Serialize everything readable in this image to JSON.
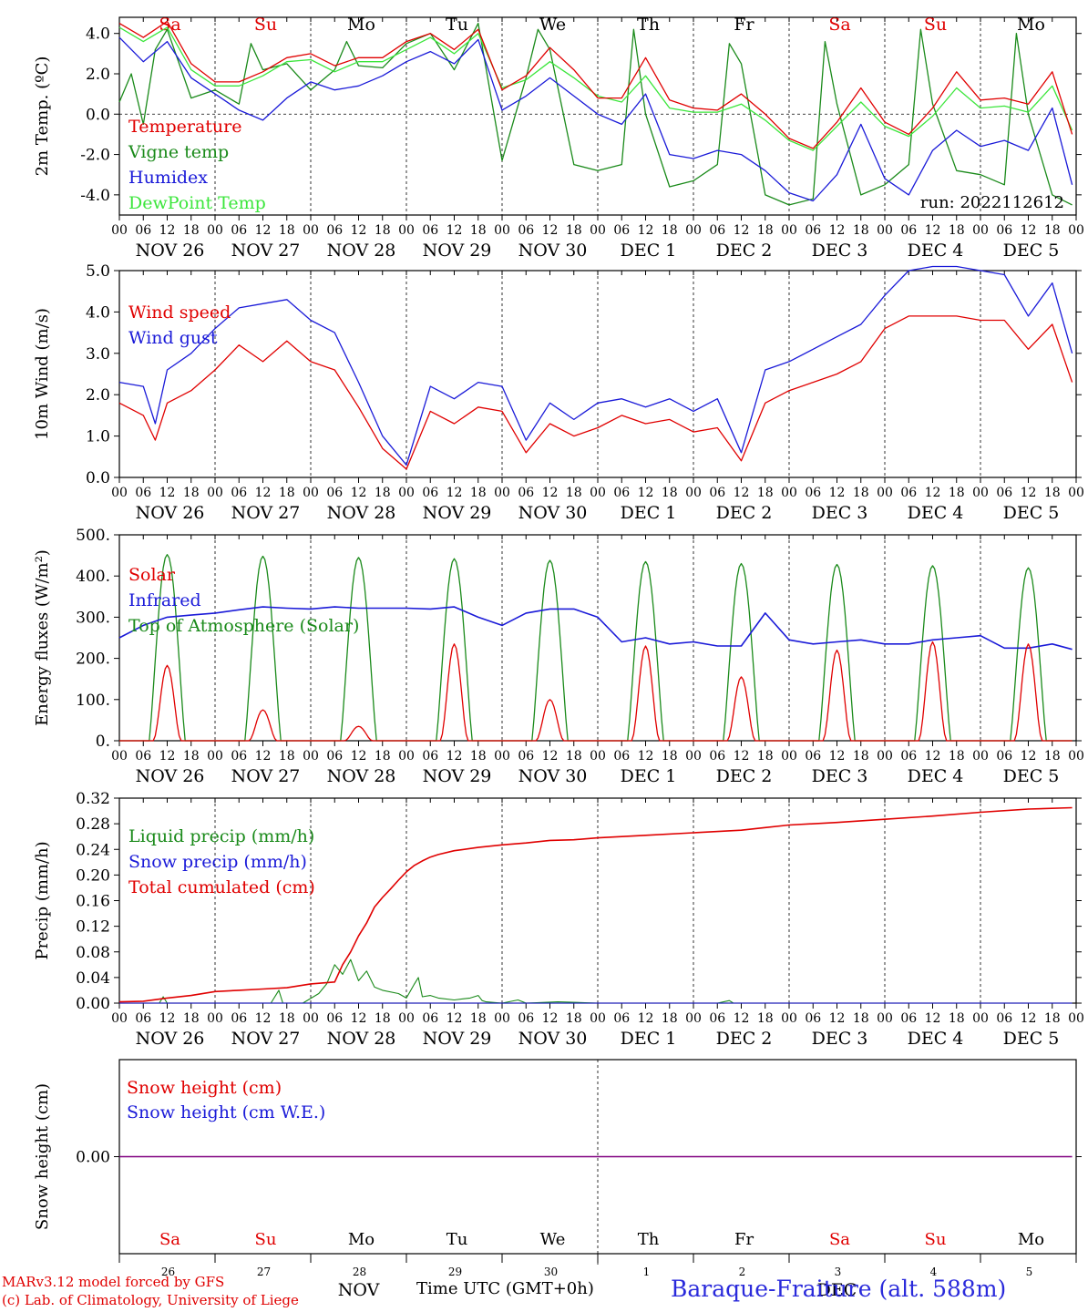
{
  "colors": {
    "red": "#e00000",
    "green": "#1a8a1a",
    "blue": "#1a1ad8",
    "lime": "#3ce63c",
    "purple": "#800080",
    "grid": "#000000"
  },
  "calendar": {
    "day_labels": [
      "NOV 26",
      "NOV 27",
      "NOV 28",
      "NOV 29",
      "NOV 30",
      "DEC  1",
      "DEC  2",
      "DEC  3",
      "DEC  4",
      "DEC  5"
    ],
    "weekdays": [
      "Sa",
      "Su",
      "Mo",
      "Tu",
      "We",
      "Th",
      "Fr",
      "Sa",
      "Su",
      "Mo"
    ],
    "weekday_colors": [
      "red",
      "red",
      "black",
      "black",
      "black",
      "black",
      "black",
      "red",
      "red",
      "black"
    ],
    "hour_ticks": [
      "00",
      "06",
      "12",
      "18"
    ],
    "bottom_day_numbers": [
      "26",
      "27",
      "28",
      "29",
      "30",
      "1",
      "2",
      "3",
      "4",
      "5"
    ],
    "bottom_month_labels": [
      "NOV",
      "DEC"
    ]
  },
  "footer": {
    "model_line": "MARv3.12 model forced by GFS",
    "copyright_line": "(c) Lab. of Climatology, University of Liege",
    "xaxis_title": "Time UTC (GMT+0h)",
    "station": "Baraque-Fraiture (alt. 588m)"
  },
  "chart_data": [
    {
      "type": "line",
      "ylabel": "2m Temp. (ºC)",
      "ylim": [
        -5,
        4.8
      ],
      "yticks": [
        "4.0",
        "2.0",
        "0.0",
        "-2.0",
        "-4.0"
      ],
      "ytick_values": [
        4,
        2,
        0,
        -2,
        -4
      ],
      "zero_line": 0,
      "annotation": "run: 2022112612",
      "x_unit": "hours since NOV 26 00 UTC",
      "series": [
        {
          "name": "Temperature",
          "color": "red",
          "x": [
            0,
            6,
            12,
            18,
            24,
            30,
            36,
            42,
            48,
            54,
            60,
            66,
            72,
            78,
            84,
            90,
            96,
            102,
            108,
            114,
            120,
            126,
            132,
            138,
            144,
            150,
            156,
            162,
            168,
            174,
            180,
            186,
            192,
            198,
            204,
            210,
            216,
            222,
            228,
            234,
            239
          ],
          "values": [
            4.5,
            3.8,
            4.6,
            2.5,
            1.6,
            1.6,
            2.1,
            2.8,
            3.0,
            2.4,
            2.8,
            2.8,
            3.6,
            4.0,
            3.2,
            4.2,
            1.2,
            1.9,
            3.3,
            2.2,
            0.8,
            0.8,
            2.8,
            0.7,
            0.3,
            0.2,
            1.0,
            0.0,
            -1.2,
            -1.7,
            -0.4,
            1.3,
            -0.4,
            -1.0,
            0.3,
            2.1,
            0.7,
            0.8,
            0.5,
            2.1,
            -1.0
          ]
        },
        {
          "name": "Vigne temp",
          "color": "green",
          "x": [
            0,
            3,
            6,
            9,
            12,
            18,
            24,
            30,
            33,
            36,
            42,
            48,
            54,
            57,
            60,
            66,
            72,
            78,
            84,
            90,
            96,
            102,
            105,
            108,
            114,
            120,
            126,
            129,
            132,
            138,
            144,
            150,
            153,
            156,
            162,
            168,
            174,
            177,
            180,
            186,
            192,
            198,
            201,
            204,
            210,
            216,
            222,
            225,
            228,
            234,
            239
          ],
          "values": [
            0.6,
            2.0,
            -0.5,
            3.2,
            4.2,
            0.8,
            1.2,
            0.5,
            3.5,
            2.2,
            2.5,
            1.2,
            2.2,
            3.6,
            2.4,
            2.3,
            3.5,
            4.0,
            2.2,
            4.5,
            -2.3,
            1.8,
            4.2,
            3.2,
            -2.5,
            -2.8,
            -2.5,
            4.2,
            0.0,
            -3.6,
            -3.3,
            -2.5,
            3.5,
            2.5,
            -4.0,
            -4.5,
            -4.2,
            3.6,
            0.5,
            -4.0,
            -3.5,
            -2.5,
            4.2,
            0.5,
            -2.8,
            -3.0,
            -3.5,
            4.0,
            0.0,
            -4.0,
            -4.5
          ]
        },
        {
          "name": "Humidex",
          "color": "blue",
          "x": [
            0,
            6,
            12,
            18,
            24,
            30,
            36,
            42,
            48,
            54,
            60,
            66,
            72,
            78,
            84,
            90,
            96,
            102,
            108,
            114,
            120,
            126,
            132,
            138,
            144,
            150,
            156,
            162,
            168,
            174,
            180,
            186,
            192,
            198,
            204,
            210,
            216,
            222,
            228,
            234,
            239
          ],
          "values": [
            3.8,
            2.6,
            3.6,
            1.8,
            1.0,
            0.2,
            -0.3,
            0.8,
            1.6,
            1.2,
            1.4,
            1.9,
            2.6,
            3.1,
            2.5,
            3.7,
            0.2,
            0.9,
            1.8,
            0.9,
            0.0,
            -0.5,
            1.0,
            -2.0,
            -2.2,
            -1.8,
            -2.0,
            -2.8,
            -3.9,
            -4.3,
            -3.0,
            -0.5,
            -3.2,
            -4.0,
            -1.8,
            -0.8,
            -1.6,
            -1.3,
            -1.8,
            0.3,
            -3.5
          ]
        },
        {
          "name": "DewPoint Temp",
          "color": "lime",
          "x": [
            0,
            6,
            12,
            18,
            24,
            30,
            36,
            42,
            48,
            54,
            60,
            66,
            72,
            78,
            84,
            90,
            96,
            102,
            108,
            114,
            120,
            126,
            132,
            138,
            144,
            150,
            156,
            162,
            168,
            174,
            180,
            186,
            192,
            198,
            204,
            210,
            216,
            222,
            228,
            234,
            239
          ],
          "values": [
            4.3,
            3.6,
            4.3,
            2.2,
            1.4,
            1.4,
            1.9,
            2.6,
            2.7,
            2.1,
            2.6,
            2.6,
            3.2,
            3.8,
            3.0,
            4.0,
            1.3,
            1.7,
            2.6,
            1.8,
            0.9,
            0.6,
            1.9,
            0.3,
            0.1,
            0.1,
            0.5,
            -0.3,
            -1.3,
            -1.8,
            -0.6,
            0.6,
            -0.6,
            -1.1,
            -0.1,
            1.3,
            0.3,
            0.4,
            0.1,
            1.4,
            -0.8
          ]
        }
      ]
    },
    {
      "type": "line",
      "ylabel": "10m Wind (m/s)",
      "ylim": [
        0,
        5.0
      ],
      "yticks": [
        "5.0",
        "4.0",
        "3.0",
        "2.0",
        "1.0",
        "0.0"
      ],
      "ytick_values": [
        5,
        4,
        3,
        2,
        1,
        0
      ],
      "ref_line": 5.0,
      "series": [
        {
          "name": "Wind speed",
          "color": "red",
          "x": [
            0,
            6,
            9,
            12,
            18,
            24,
            30,
            36,
            42,
            48,
            54,
            60,
            66,
            72,
            78,
            84,
            90,
            96,
            102,
            108,
            114,
            120,
            126,
            132,
            138,
            144,
            150,
            156,
            162,
            168,
            174,
            180,
            186,
            192,
            198,
            204,
            210,
            216,
            222,
            228,
            234,
            239
          ],
          "values": [
            1.8,
            1.5,
            0.9,
            1.8,
            2.1,
            2.6,
            3.2,
            2.8,
            3.3,
            2.8,
            2.6,
            1.7,
            0.7,
            0.2,
            1.6,
            1.3,
            1.7,
            1.6,
            0.6,
            1.3,
            1.0,
            1.2,
            1.5,
            1.3,
            1.4,
            1.1,
            1.2,
            0.4,
            1.8,
            2.1,
            2.3,
            2.5,
            2.8,
            3.6,
            3.9,
            3.9,
            3.9,
            3.8,
            3.8,
            3.1,
            3.7,
            2.3
          ]
        },
        {
          "name": "Wind gust",
          "color": "blue",
          "x": [
            0,
            6,
            9,
            12,
            18,
            24,
            30,
            36,
            42,
            48,
            54,
            60,
            66,
            72,
            78,
            84,
            90,
            96,
            102,
            108,
            114,
            120,
            126,
            132,
            138,
            144,
            150,
            156,
            162,
            168,
            174,
            180,
            186,
            192,
            198,
            204,
            210,
            216,
            222,
            228,
            234,
            239
          ],
          "values": [
            2.3,
            2.2,
            1.3,
            2.6,
            3.0,
            3.6,
            4.1,
            4.2,
            4.3,
            3.8,
            3.5,
            2.3,
            1.0,
            0.3,
            2.2,
            1.9,
            2.3,
            2.2,
            0.9,
            1.8,
            1.4,
            1.8,
            1.9,
            1.7,
            1.9,
            1.6,
            1.9,
            0.6,
            2.6,
            2.8,
            3.1,
            3.4,
            3.7,
            4.4,
            5.0,
            5.1,
            5.1,
            5.0,
            4.9,
            3.9,
            4.7,
            3.0
          ]
        }
      ]
    },
    {
      "type": "line",
      "ylabel": "Energy fluxes (W/m²)",
      "ylim": [
        0,
        500
      ],
      "yticks": [
        "500.",
        "400.",
        "300.",
        "200.",
        "100.",
        "0."
      ],
      "ytick_values": [
        500,
        400,
        300,
        200,
        100,
        0
      ],
      "series": [
        {
          "name": "Solar",
          "color": "red",
          "daily_peaks": [
            183,
            75,
            35,
            235,
            100,
            230,
            155,
            220,
            240,
            235
          ]
        },
        {
          "name": "Infrared",
          "color": "blue",
          "x": [
            0,
            6,
            12,
            18,
            24,
            30,
            36,
            42,
            48,
            54,
            60,
            66,
            72,
            78,
            84,
            90,
            96,
            102,
            108,
            114,
            120,
            126,
            132,
            138,
            144,
            150,
            156,
            162,
            168,
            174,
            180,
            186,
            192,
            198,
            204,
            210,
            216,
            222,
            228,
            234,
            239
          ],
          "values": [
            250,
            280,
            300,
            305,
            310,
            318,
            325,
            322,
            320,
            325,
            322,
            322,
            322,
            320,
            325,
            300,
            280,
            310,
            320,
            320,
            300,
            240,
            250,
            235,
            240,
            230,
            230,
            310,
            245,
            235,
            240,
            245,
            235,
            235,
            245,
            250,
            255,
            225,
            225,
            235,
            222
          ]
        },
        {
          "name": "Top of Atmosphere (Solar)",
          "color": "green",
          "daily_peaks": [
            452,
            448,
            445,
            442,
            438,
            435,
            430,
            428,
            425,
            420
          ]
        }
      ]
    },
    {
      "type": "line",
      "ylabel": "Precip (mm/h)",
      "ylim": [
        0,
        0.32
      ],
      "yticks": [
        "0.32",
        "0.28",
        "0.24",
        "0.20",
        "0.16",
        "0.12",
        "0.08",
        "0.04",
        "0.00"
      ],
      "ytick_values": [
        0.32,
        0.28,
        0.24,
        0.2,
        0.16,
        0.12,
        0.08,
        0.04,
        0.0
      ],
      "series": [
        {
          "name": "Liquid precip (mm/h)",
          "color": "green",
          "x": [
            0,
            10,
            11,
            12,
            16,
            24,
            38,
            40,
            41,
            46,
            50,
            52,
            54,
            56,
            58,
            60,
            62,
            64,
            66,
            70,
            72,
            74,
            75,
            76,
            78,
            80,
            84,
            88,
            90,
            91,
            92,
            96,
            100,
            102,
            110,
            120,
            150,
            153,
            154,
            170,
            210,
            239
          ],
          "values": [
            0,
            0,
            0.01,
            0,
            0,
            0,
            0,
            0.02,
            0,
            0,
            0.015,
            0.03,
            0.06,
            0.045,
            0.068,
            0.035,
            0.05,
            0.025,
            0.02,
            0.015,
            0.008,
            0.03,
            0.04,
            0.01,
            0.012,
            0.008,
            0.005,
            0.008,
            0.012,
            0.004,
            0.002,
            0,
            0.005,
            0,
            0.002,
            0,
            0,
            0.004,
            0,
            0,
            0,
            0
          ]
        },
        {
          "name": "Snow precip (mm/h)",
          "color": "blue",
          "x": [
            0,
            239
          ],
          "values": [
            0,
            0
          ]
        },
        {
          "name": "Total cumulated (cm)",
          "color": "red",
          "x": [
            0,
            6,
            12,
            18,
            24,
            30,
            36,
            42,
            48,
            54,
            56,
            58,
            60,
            62,
            64,
            66,
            68,
            70,
            72,
            74,
            76,
            78,
            80,
            84,
            90,
            96,
            102,
            108,
            114,
            120,
            132,
            144,
            156,
            162,
            168,
            180,
            192,
            204,
            216,
            228,
            239
          ],
          "values": [
            0.002,
            0.003,
            0.008,
            0.012,
            0.018,
            0.02,
            0.022,
            0.024,
            0.03,
            0.033,
            0.06,
            0.08,
            0.105,
            0.125,
            0.15,
            0.165,
            0.178,
            0.192,
            0.205,
            0.215,
            0.222,
            0.228,
            0.232,
            0.238,
            0.243,
            0.247,
            0.25,
            0.254,
            0.255,
            0.258,
            0.262,
            0.266,
            0.27,
            0.274,
            0.278,
            0.282,
            0.287,
            0.292,
            0.298,
            0.303,
            0.305
          ]
        }
      ]
    },
    {
      "type": "line",
      "ylabel": "Snow height (cm)",
      "ylim": [
        -1,
        1
      ],
      "yticks": [
        "0.00"
      ],
      "ytick_values": [
        0
      ],
      "series": [
        {
          "name": "Snow height (cm)",
          "color": "red",
          "x": [
            0,
            239
          ],
          "values": [
            0,
            0
          ]
        },
        {
          "name": "Snow height (cm W.E.)",
          "color": "blue",
          "x": [
            0,
            239
          ],
          "values": [
            0,
            0
          ]
        }
      ]
    }
  ]
}
